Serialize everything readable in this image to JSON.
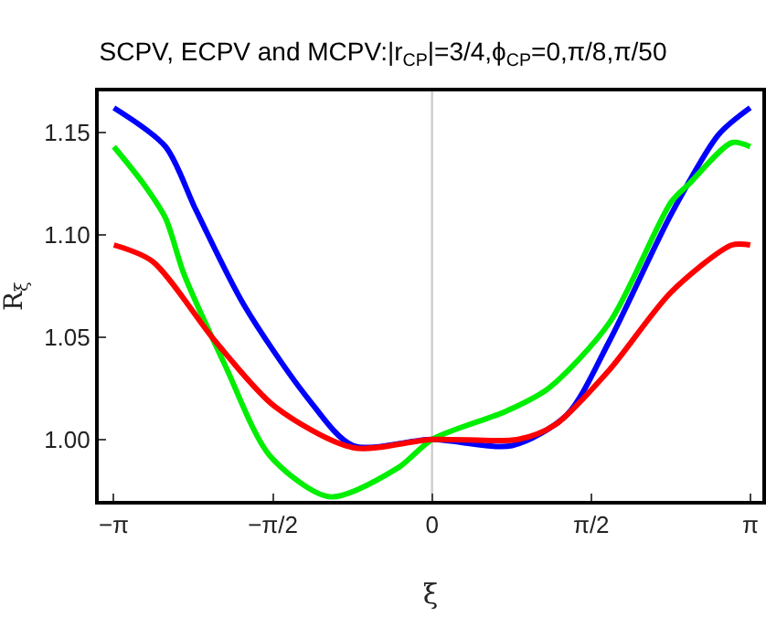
{
  "chart_data": {
    "type": "line",
    "title": "SCPV, ECPV and MCPV:|r$_{CP}$|=3/4,ϕ$_{CP}$=0,π/8,π/50",
    "xlabel": "ξ",
    "ylabel": "R$_{ξ}$",
    "series": [
      {
        "color": "#0000ff",
        "x": [
          -3.14,
          -2.63,
          -2.33,
          -1.86,
          -1.24,
          -0.78,
          0,
          0.79,
          1.33,
          1.75,
          2.36,
          2.83,
          3.14
        ],
        "values": [
          1.162,
          1.143,
          1.112,
          1.066,
          1.021,
          0.997,
          1.0,
          0.997,
          1.012,
          1.048,
          1.11,
          1.149,
          1.162
        ]
      },
      {
        "color": "#00ee00",
        "x": [
          -3.14,
          -2.85,
          -2.63,
          -2.45,
          -2.04,
          -1.6,
          -1.01,
          -0.34,
          0,
          0.74,
          1.15,
          1.75,
          2.36,
          2.54,
          2.96,
          3.14
        ],
        "values": [
          1.143,
          1.125,
          1.108,
          1.081,
          1.036,
          0.992,
          0.972,
          0.986,
          1.0,
          1.014,
          1.025,
          1.057,
          1.116,
          1.125,
          1.145,
          1.143
        ]
      },
      {
        "color": "#ff0000",
        "x": [
          -3.14,
          -2.76,
          -2.14,
          -1.55,
          -0.78,
          0,
          0.85,
          1.21,
          1.75,
          2.36,
          2.96,
          3.14
        ],
        "values": [
          1.095,
          1.087,
          1.048,
          1.016,
          0.996,
          1.0,
          1.0,
          1.007,
          1.034,
          1.072,
          1.095,
          1.095
        ]
      }
    ],
    "xlim": [
      -3.29,
      3.26
    ],
    "ylim": [
      0.97,
      1.17
    ],
    "xticks": [
      {
        "value": -3.1416,
        "label": "−π"
      },
      {
        "value": -1.5708,
        "label": "−π/2"
      },
      0,
      {
        "value": 1.5708,
        "label": "π/2"
      },
      {
        "value": 3.1416,
        "label": "π"
      }
    ],
    "yticks": [
      {
        "value": 1,
        "label": "1.00"
      },
      {
        "value": 1.05,
        "label": "1.05"
      },
      {
        "value": 1.1,
        "label": "1.10"
      },
      {
        "value": 1.15,
        "label": "1.15"
      }
    ],
    "ref_lines": [
      {
        "axis": "x",
        "value": 0,
        "color": "#cccccc"
      }
    ],
    "grid": false
  }
}
